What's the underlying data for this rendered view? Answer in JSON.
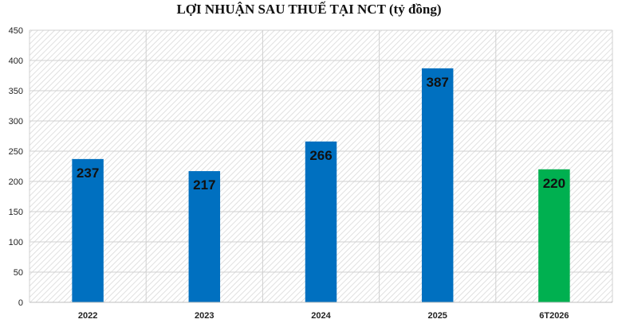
{
  "chart_data": {
    "type": "bar",
    "title": "LỢI NHUẬN SAU THUẾ TẠI NCT (tỷ đồng)",
    "categories": [
      "2022",
      "2023",
      "2024",
      "2025",
      "6T2026"
    ],
    "values": [
      237,
      217,
      266,
      387,
      220
    ],
    "data_labels": [
      "237",
      "217",
      "266",
      "387",
      "220"
    ],
    "bar_colors": [
      "#0070c0",
      "#0070c0",
      "#0070c0",
      "#0070c0",
      "#00b050"
    ],
    "xlabel": "",
    "ylabel": "",
    "ylim": [
      0,
      450
    ],
    "yticks": [
      0,
      50,
      100,
      150,
      200,
      250,
      300,
      350,
      400,
      450
    ],
    "grid": true,
    "legend": "none"
  }
}
